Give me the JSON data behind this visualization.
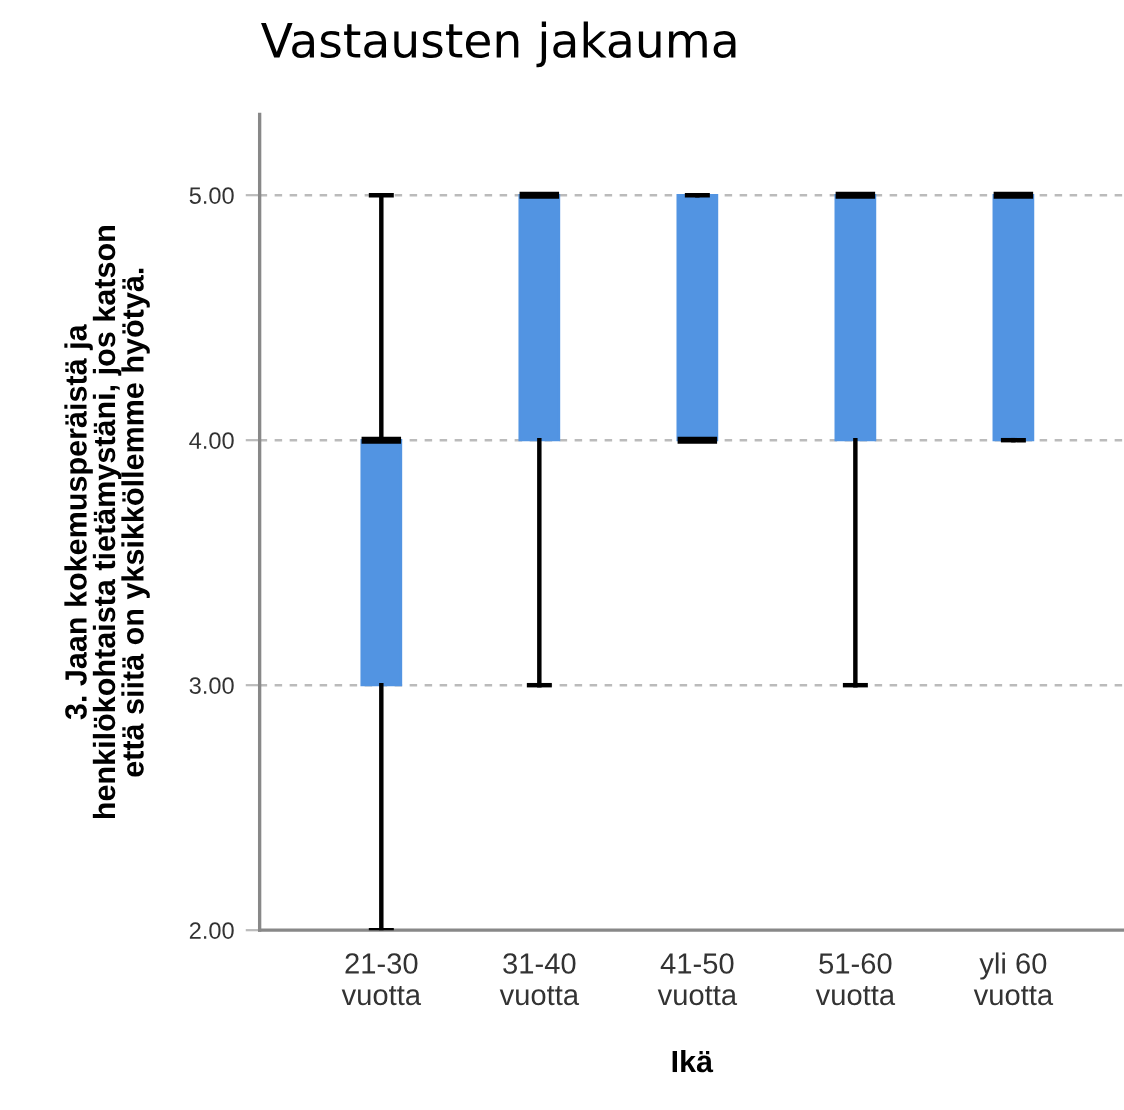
{
  "chart_data": {
    "type": "box",
    "title": "Vastausten jakauma",
    "xlabel": "Ikä",
    "ylabel": "3. Jaan kokemusperäistä ja\nhenkilökohtaista tietämystäni, jos katson\nettä siitä on yksikköllemme hyötyä.",
    "categories": [
      "21-30\nvuotta",
      "31-40\nvuotta",
      "41-50\nvuotta",
      "51-60\nvuotta",
      "yli 60\nvuotta"
    ],
    "series": [
      {
        "color": "#5294e2",
        "boxes": [
          {
            "low": 2,
            "q1": 3,
            "median": 4,
            "q3": 4,
            "high": 5
          },
          {
            "low": 3,
            "q1": 4,
            "median": 5,
            "q3": 5,
            "high": 5
          },
          {
            "low": 4,
            "q1": 4,
            "median": 4,
            "q3": 5,
            "high": 5
          },
          {
            "low": 3,
            "q1": 4,
            "median": 5,
            "q3": 5,
            "high": 5
          },
          {
            "low": 4,
            "q1": 4,
            "median": 5,
            "q3": 5,
            "high": 5
          }
        ]
      }
    ],
    "ylim": [
      2,
      5.33
    ],
    "yticks": [
      {
        "value": 2,
        "label": "2.00"
      },
      {
        "value": 3,
        "label": "3.00"
      },
      {
        "value": 4,
        "label": "4.00"
      },
      {
        "value": 5,
        "label": "5.00"
      }
    ],
    "grid": "y"
  }
}
